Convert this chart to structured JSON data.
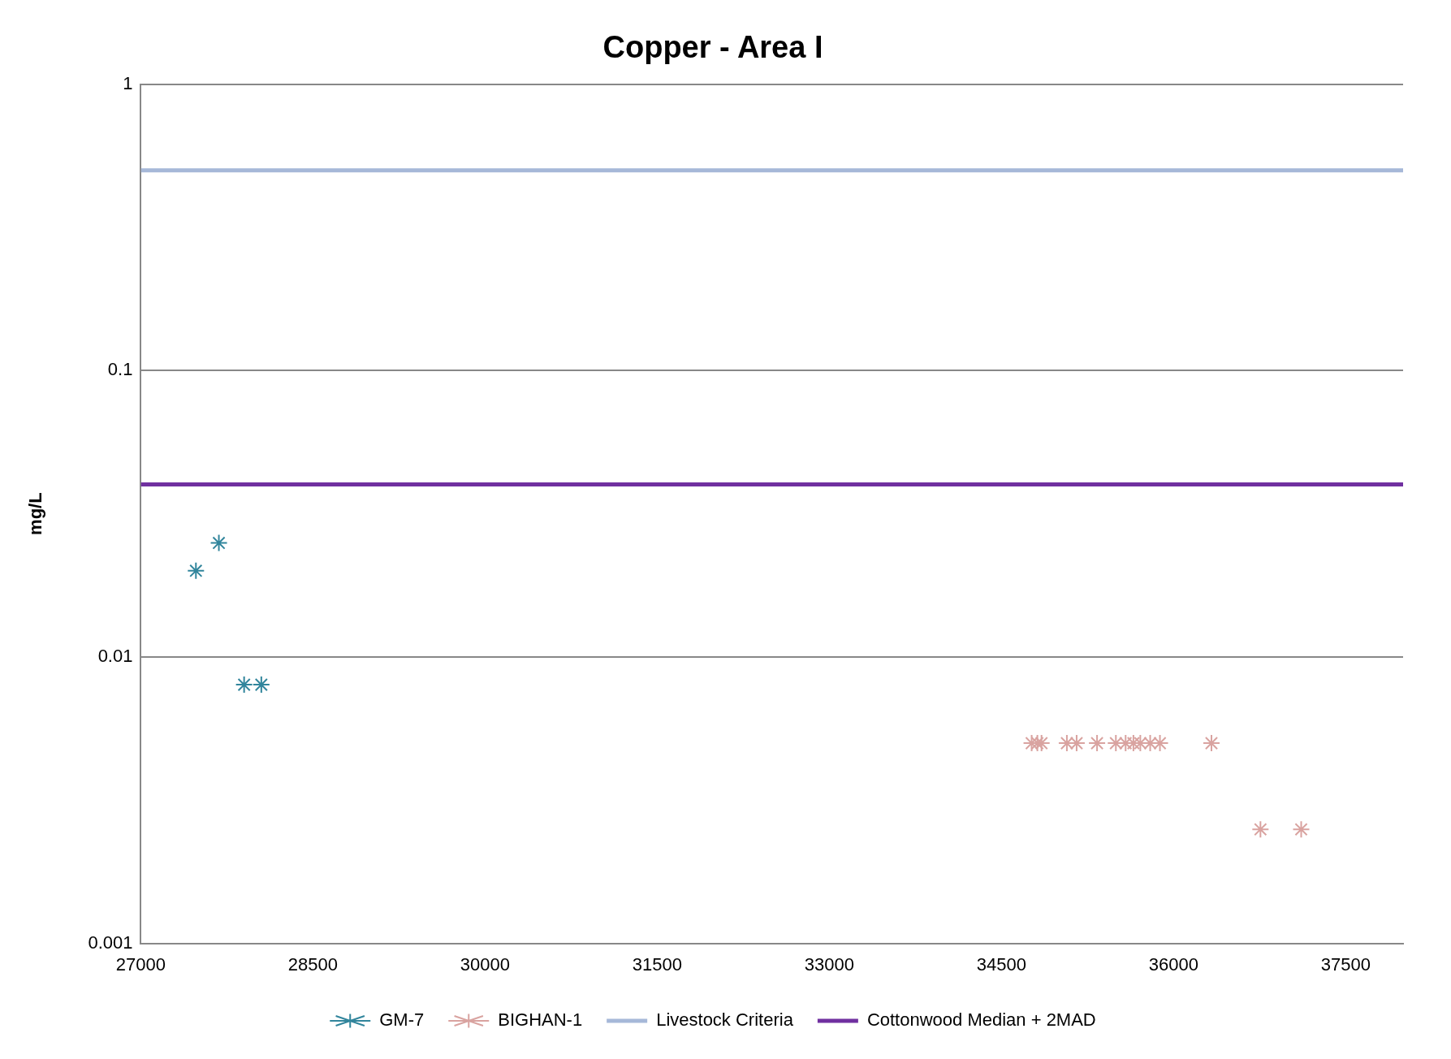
{
  "chart_data": {
    "type": "scatter",
    "title": "Copper - Area I",
    "ylabel": "mg/L",
    "log": "y",
    "xlim": [
      27000,
      38000
    ],
    "xticks": [
      27000,
      28500,
      30000,
      31500,
      33000,
      34500,
      36000,
      37500
    ],
    "ylim": [
      0.001,
      1
    ],
    "yticks": [
      0.001,
      0.01,
      0.1,
      1
    ],
    "grid": "y",
    "legend": "bottom",
    "marker": "cross",
    "series": [
      {
        "name": "GM-7",
        "color": "#31859c",
        "x": [
          27480,
          27680,
          27900,
          28050
        ],
        "values": [
          0.02,
          0.025,
          0.008,
          0.008
        ]
      },
      {
        "name": "BIGHAN-1",
        "color": "#d9a3a0",
        "x": [
          34763,
          34813,
          34849,
          35070,
          35155,
          35333,
          35497,
          35582,
          35650,
          35710,
          35796,
          35881,
          36330,
          36757,
          37112
        ],
        "values": [
          0.005,
          0.005,
          0.005,
          0.005,
          0.005,
          0.005,
          0.005,
          0.005,
          0.005,
          0.005,
          0.005,
          0.005,
          0.005,
          0.0025,
          0.0025
        ]
      }
    ],
    "ref_lines": [
      {
        "axis": "y",
        "value": 0.5,
        "label": "Livestock Criteria",
        "color": "#a6b8d8"
      },
      {
        "axis": "y",
        "value": 0.04,
        "label": "Cottonwood Median + 2MAD",
        "color": "#7030a0"
      }
    ]
  }
}
